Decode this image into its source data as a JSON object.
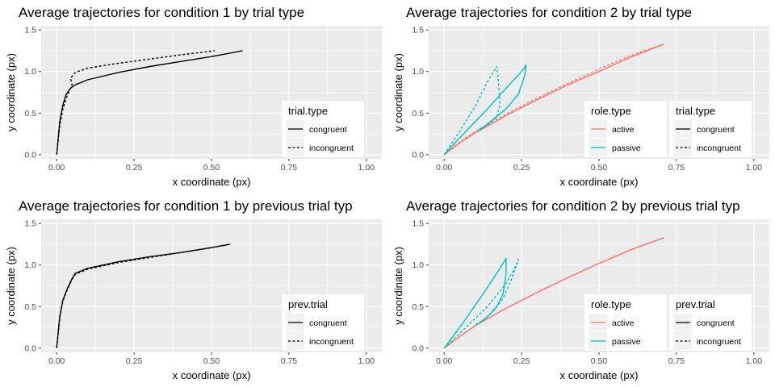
{
  "chart_data": [
    {
      "type": "line",
      "title": "Average trajectories for condition 1 by trial type",
      "xlabel": "x coordinate (px)",
      "ylabel": "y coordinate (px)",
      "xlim": [
        -0.05,
        1.05
      ],
      "ylim": [
        -0.05,
        1.55
      ],
      "x_ticks": [
        0,
        0.25,
        0.5,
        0.75,
        1
      ],
      "x_tick_labels": [
        "0.00",
        "0.25",
        "0.50",
        "0.75",
        "1.00"
      ],
      "y_ticks": [
        0,
        0.5,
        1,
        1.5
      ],
      "y_tick_labels": [
        "0.0",
        "0.5",
        "1.0",
        "1.5"
      ],
      "grid": true,
      "legends": [
        {
          "title": "trial.type",
          "kind": "linetype",
          "items": [
            {
              "label": "congruent",
              "color": "#000000",
              "dash": "solid"
            },
            {
              "label": "incongruent",
              "color": "#000000",
              "dash": "dashed"
            }
          ]
        }
      ],
      "series": [
        {
          "name": "congruent",
          "color": "#000000",
          "dash": "solid",
          "x": [
            0,
            0.01,
            0.02,
            0.03,
            0.045,
            0.06,
            0.1,
            0.2,
            0.3,
            0.4,
            0.5,
            0.6
          ],
          "y": [
            0,
            0.4,
            0.6,
            0.72,
            0.8,
            0.84,
            0.9,
            0.99,
            1.06,
            1.12,
            1.18,
            1.25
          ]
        },
        {
          "name": "incongruent",
          "color": "#000000",
          "dash": "dashed",
          "x": [
            0,
            0.01,
            0.02,
            0.035,
            0.05,
            0.045,
            0.06,
            0.1,
            0.2,
            0.3,
            0.4,
            0.51
          ],
          "y": [
            0,
            0.35,
            0.55,
            0.72,
            0.84,
            0.92,
            0.99,
            1.04,
            1.1,
            1.15,
            1.2,
            1.25
          ]
        }
      ]
    },
    {
      "type": "line",
      "title": "Average trajectories for condition 2 by trial type",
      "xlabel": "x coordinate (px)",
      "ylabel": "y coordinate (px)",
      "xlim": [
        -0.05,
        1.05
      ],
      "ylim": [
        -0.05,
        1.55
      ],
      "x_ticks": [
        0,
        0.25,
        0.5,
        0.75,
        1
      ],
      "x_tick_labels": [
        "0.00",
        "0.25",
        "0.50",
        "0.75",
        "1.00"
      ],
      "y_ticks": [
        0,
        0.5,
        1,
        1.5
      ],
      "y_tick_labels": [
        "0.0",
        "0.5",
        "1.0",
        "1.5"
      ],
      "grid": true,
      "legends": [
        {
          "title": "role.type",
          "kind": "color",
          "items": [
            {
              "label": "active",
              "color": "#F8766D",
              "dash": "solid"
            },
            {
              "label": "passive",
              "color": "#00BFC4",
              "dash": "solid"
            }
          ]
        },
        {
          "title": "trial.type",
          "kind": "linetype",
          "items": [
            {
              "label": "congruent",
              "color": "#000000",
              "dash": "solid"
            },
            {
              "label": "incongruent",
              "color": "#000000",
              "dash": "dashed"
            }
          ]
        }
      ],
      "series": [
        {
          "name": "active congruent",
          "color": "#F8766D",
          "dash": "solid",
          "x": [
            0,
            0.05,
            0.1,
            0.2,
            0.3,
            0.4,
            0.5,
            0.6,
            0.71
          ],
          "y": [
            0,
            0.14,
            0.26,
            0.47,
            0.66,
            0.84,
            1.0,
            1.17,
            1.33
          ]
        },
        {
          "name": "active incongruent",
          "color": "#F8766D",
          "dash": "dashed",
          "x": [
            0,
            0.05,
            0.1,
            0.2,
            0.3,
            0.4,
            0.5,
            0.6,
            0.71
          ],
          "y": [
            0,
            0.15,
            0.28,
            0.49,
            0.68,
            0.86,
            1.03,
            1.19,
            1.33
          ]
        },
        {
          "name": "passive congruent",
          "color": "#00BFC4",
          "dash": "solid",
          "x": [
            0,
            0.07,
            0.14,
            0.2,
            0.25,
            0.265,
            0.26,
            0.24,
            0.2,
            0.15,
            0.11
          ],
          "y": [
            0,
            0.28,
            0.55,
            0.8,
            1.0,
            1.08,
            0.95,
            0.73,
            0.55,
            0.4,
            0.28
          ]
        },
        {
          "name": "passive incongruent",
          "color": "#00BFC4",
          "dash": "dashed",
          "x": [
            0,
            0.05,
            0.1,
            0.14,
            0.165,
            0.17,
            0.175,
            0.18,
            0.17,
            0.14,
            0.11
          ],
          "y": [
            0,
            0.28,
            0.58,
            0.88,
            1.03,
            1.06,
            0.9,
            0.6,
            0.45,
            0.36,
            0.3
          ]
        }
      ]
    },
    {
      "type": "line",
      "title": "Average trajectories for condition 1 by previous trial typ",
      "xlabel": "x coordinate (px)",
      "ylabel": "y coordinate (px)",
      "xlim": [
        -0.05,
        1.05
      ],
      "ylim": [
        -0.05,
        1.55
      ],
      "x_ticks": [
        0,
        0.25,
        0.5,
        0.75,
        1
      ],
      "x_tick_labels": [
        "0.00",
        "0.25",
        "0.50",
        "0.75",
        "1.00"
      ],
      "y_ticks": [
        0,
        0.5,
        1,
        1.5
      ],
      "y_tick_labels": [
        "0.0",
        "0.5",
        "1.0",
        "1.5"
      ],
      "grid": true,
      "legends": [
        {
          "title": "prev.trial",
          "kind": "linetype",
          "items": [
            {
              "label": "congruent",
              "color": "#000000",
              "dash": "solid"
            },
            {
              "label": "incongruent",
              "color": "#000000",
              "dash": "dashed"
            }
          ]
        }
      ],
      "series": [
        {
          "name": "congruent",
          "color": "#000000",
          "dash": "solid",
          "x": [
            0,
            0.01,
            0.02,
            0.035,
            0.05,
            0.06,
            0.1,
            0.2,
            0.3,
            0.4,
            0.5,
            0.56
          ],
          "y": [
            0,
            0.38,
            0.58,
            0.72,
            0.84,
            0.9,
            0.96,
            1.04,
            1.1,
            1.15,
            1.21,
            1.25
          ]
        },
        {
          "name": "incongruent",
          "color": "#000000",
          "dash": "dashed",
          "x": [
            0,
            0.01,
            0.02,
            0.035,
            0.05,
            0.06,
            0.1,
            0.2,
            0.3,
            0.4,
            0.5,
            0.56
          ],
          "y": [
            0,
            0.37,
            0.57,
            0.71,
            0.83,
            0.89,
            0.95,
            1.03,
            1.09,
            1.15,
            1.21,
            1.25
          ]
        }
      ]
    },
    {
      "type": "line",
      "title": "Average trajectories for condition 2 by previous trial typ",
      "xlabel": "x coordinate (px)",
      "ylabel": "y coordinate (px)",
      "xlim": [
        -0.05,
        1.05
      ],
      "ylim": [
        -0.05,
        1.55
      ],
      "x_ticks": [
        0,
        0.25,
        0.5,
        0.75,
        1
      ],
      "x_tick_labels": [
        "0.00",
        "0.25",
        "0.50",
        "0.75",
        "1.00"
      ],
      "y_ticks": [
        0,
        0.5,
        1,
        1.5
      ],
      "y_tick_labels": [
        "0.0",
        "0.5",
        "1.0",
        "1.5"
      ],
      "grid": true,
      "legends": [
        {
          "title": "role.type",
          "kind": "color",
          "items": [
            {
              "label": "active",
              "color": "#F8766D",
              "dash": "solid"
            },
            {
              "label": "passive",
              "color": "#00BFC4",
              "dash": "solid"
            }
          ]
        },
        {
          "title": "prev.trial",
          "kind": "linetype",
          "items": [
            {
              "label": "congruent",
              "color": "#000000",
              "dash": "solid"
            },
            {
              "label": "incongruent",
              "color": "#000000",
              "dash": "dashed"
            }
          ]
        }
      ],
      "series": [
        {
          "name": "active congruent",
          "color": "#F8766D",
          "dash": "solid",
          "x": [
            0,
            0.05,
            0.1,
            0.2,
            0.3,
            0.4,
            0.5,
            0.6,
            0.71
          ],
          "y": [
            0,
            0.14,
            0.27,
            0.48,
            0.67,
            0.85,
            1.02,
            1.18,
            1.33
          ]
        },
        {
          "name": "active incongruent",
          "color": "#F8766D",
          "dash": "dashed",
          "x": [
            0,
            0.05,
            0.1,
            0.2,
            0.3,
            0.4,
            0.5,
            0.6,
            0.71
          ],
          "y": [
            0,
            0.14,
            0.27,
            0.48,
            0.67,
            0.85,
            1.02,
            1.18,
            1.33
          ]
        },
        {
          "name": "passive congruent",
          "color": "#00BFC4",
          "dash": "solid",
          "x": [
            0,
            0.06,
            0.12,
            0.17,
            0.195,
            0.2,
            0.2,
            0.19,
            0.17,
            0.14,
            0.11
          ],
          "y": [
            0,
            0.3,
            0.62,
            0.9,
            1.05,
            1.08,
            0.9,
            0.65,
            0.5,
            0.38,
            0.29
          ]
        },
        {
          "name": "passive incongruent",
          "color": "#00BFC4",
          "dash": "dashed",
          "x": [
            0,
            0.07,
            0.14,
            0.2,
            0.23,
            0.24,
            0.22,
            0.19,
            0.16,
            0.13,
            0.1
          ],
          "y": [
            0,
            0.25,
            0.5,
            0.78,
            0.98,
            1.07,
            0.85,
            0.6,
            0.45,
            0.35,
            0.28
          ]
        }
      ]
    }
  ]
}
